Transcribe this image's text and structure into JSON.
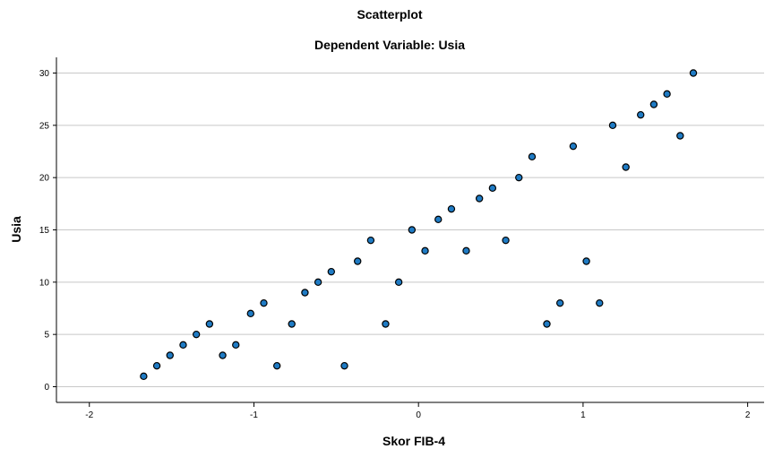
{
  "chart_data": {
    "type": "scatter",
    "title": "Scatterplot",
    "subtitle": "Dependent Variable: Usia",
    "xlabel": "Skor FIB-4",
    "ylabel": "Usia",
    "xlim": [
      -2.2,
      2.1
    ],
    "ylim": [
      -1.5,
      31.5
    ],
    "xticks": [
      -2,
      -1,
      0,
      1,
      2
    ],
    "yticks": [
      0,
      5,
      10,
      15,
      20,
      25,
      30
    ],
    "grid": {
      "horizontal": true,
      "vertical": false
    },
    "point_color": "#1f7bc4",
    "points": [
      {
        "x": -1.67,
        "y": 1
      },
      {
        "x": -1.59,
        "y": 2
      },
      {
        "x": -1.51,
        "y": 3
      },
      {
        "x": -1.43,
        "y": 4
      },
      {
        "x": -1.35,
        "y": 5
      },
      {
        "x": -1.27,
        "y": 6
      },
      {
        "x": -1.19,
        "y": 3
      },
      {
        "x": -1.11,
        "y": 4
      },
      {
        "x": -1.02,
        "y": 7
      },
      {
        "x": -0.94,
        "y": 8
      },
      {
        "x": -0.86,
        "y": 2
      },
      {
        "x": -0.77,
        "y": 6
      },
      {
        "x": -0.69,
        "y": 9
      },
      {
        "x": -0.61,
        "y": 10
      },
      {
        "x": -0.53,
        "y": 11
      },
      {
        "x": -0.45,
        "y": 2
      },
      {
        "x": -0.37,
        "y": 12
      },
      {
        "x": -0.29,
        "y": 14
      },
      {
        "x": -0.2,
        "y": 6
      },
      {
        "x": -0.12,
        "y": 10
      },
      {
        "x": -0.04,
        "y": 15
      },
      {
        "x": 0.04,
        "y": 13
      },
      {
        "x": 0.12,
        "y": 16
      },
      {
        "x": 0.2,
        "y": 17
      },
      {
        "x": 0.29,
        "y": 13
      },
      {
        "x": 0.37,
        "y": 18
      },
      {
        "x": 0.45,
        "y": 19
      },
      {
        "x": 0.53,
        "y": 14
      },
      {
        "x": 0.61,
        "y": 20
      },
      {
        "x": 0.69,
        "y": 22
      },
      {
        "x": 0.78,
        "y": 6
      },
      {
        "x": 0.86,
        "y": 8
      },
      {
        "x": 0.94,
        "y": 23
      },
      {
        "x": 1.02,
        "y": 12
      },
      {
        "x": 1.1,
        "y": 8
      },
      {
        "x": 1.18,
        "y": 25
      },
      {
        "x": 1.26,
        "y": 21
      },
      {
        "x": 1.35,
        "y": 26
      },
      {
        "x": 1.43,
        "y": 27
      },
      {
        "x": 1.51,
        "y": 28
      },
      {
        "x": 1.59,
        "y": 24
      },
      {
        "x": 1.67,
        "y": 30
      }
    ]
  }
}
